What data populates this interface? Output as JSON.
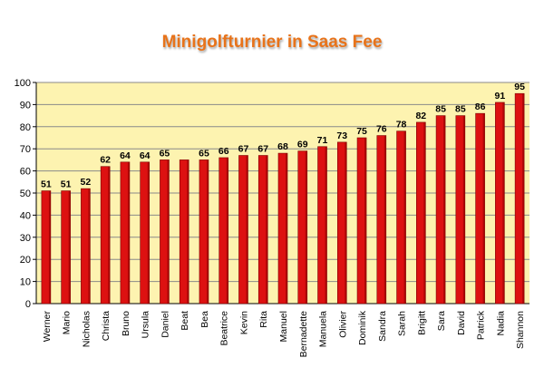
{
  "chart_data": {
    "type": "bar",
    "title": "Minigolfturnier in Saas Fee",
    "categories": [
      "Werner",
      "Mario",
      "Nicholas",
      "Christa",
      "Bruno",
      "Ursula",
      "Daniel",
      "Beat",
      "Bea",
      "Beatrice",
      "Kevin",
      "Rita",
      "Manuel",
      "Bernadette",
      "Manuela",
      "Olivier",
      "Dominik",
      "Sandra",
      "Sarah",
      "Brigitt",
      "Sara",
      "David",
      "Patrick",
      "Nadia",
      "Shannon"
    ],
    "values": [
      51,
      51,
      52,
      62,
      64,
      64,
      65,
      65,
      65,
      66,
      67,
      67,
      68,
      69,
      71,
      73,
      75,
      76,
      78,
      82,
      85,
      85,
      86,
      91,
      95
    ],
    "value_labels": [
      "51",
      "51",
      "52",
      "62",
      "64",
      "64",
      "65",
      "",
      "65",
      "66",
      "67",
      "67",
      "68",
      "69",
      "71",
      "73",
      "75",
      "76",
      "78",
      "82",
      "85",
      "85",
      "86",
      "91",
      "95"
    ],
    "ylim": [
      0,
      100
    ],
    "yticks": [
      0,
      10,
      20,
      30,
      40,
      50,
      60,
      70,
      80,
      90,
      100
    ],
    "grid": true,
    "legend": "none",
    "colors": {
      "bar": "#dd1111",
      "bar_edge": "#7a0000",
      "plot_bg": "#fdf3b0",
      "grid": "#8a8a8a",
      "title": "#e8731a"
    }
  }
}
